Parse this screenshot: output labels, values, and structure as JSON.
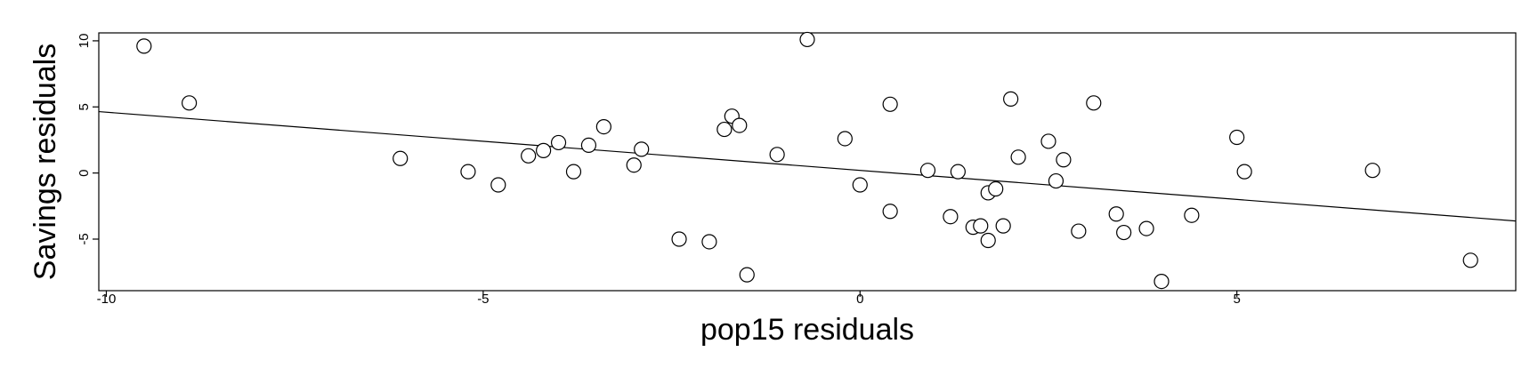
{
  "chart_data": {
    "type": "scatter",
    "xlabel": "pop15 residuals",
    "ylabel": "Savings residuals",
    "xlim": [
      -10.1,
      8.7
    ],
    "ylim": [
      -8.9,
      10.6
    ],
    "xticks": [
      -10,
      -5,
      0,
      5
    ],
    "yticks": [
      -5,
      0,
      5,
      10
    ],
    "xtick_labels": [
      "-10",
      "-5",
      "0",
      "5"
    ],
    "ytick_labels": [
      "-5",
      "0",
      "5",
      "10"
    ],
    "grid": false,
    "fit_line": {
      "intercept": 0.2,
      "slope": -0.44
    },
    "points": [
      {
        "x": -9.5,
        "y": 9.6
      },
      {
        "x": -8.9,
        "y": 5.3
      },
      {
        "x": -6.1,
        "y": 1.1
      },
      {
        "x": -5.2,
        "y": 0.1
      },
      {
        "x": -4.8,
        "y": -0.9
      },
      {
        "x": -4.4,
        "y": 1.3
      },
      {
        "x": -4.2,
        "y": 1.7
      },
      {
        "x": -4.0,
        "y": 2.3
      },
      {
        "x": -3.8,
        "y": 0.1
      },
      {
        "x": -3.6,
        "y": 2.1
      },
      {
        "x": -3.4,
        "y": 3.5
      },
      {
        "x": -3.0,
        "y": 0.6
      },
      {
        "x": -2.9,
        "y": 1.8
      },
      {
        "x": -2.4,
        "y": -5.0
      },
      {
        "x": -2.0,
        "y": -5.2
      },
      {
        "x": -1.8,
        "y": 3.3
      },
      {
        "x": -1.7,
        "y": 4.3
      },
      {
        "x": -1.6,
        "y": 3.6
      },
      {
        "x": -1.5,
        "y": -7.7
      },
      {
        "x": -1.1,
        "y": 1.4
      },
      {
        "x": -0.7,
        "y": 10.1
      },
      {
        "x": -0.2,
        "y": 2.6
      },
      {
        "x": 0.0,
        "y": -0.9
      },
      {
        "x": 0.4,
        "y": 5.2
      },
      {
        "x": 0.4,
        "y": -2.9
      },
      {
        "x": 0.9,
        "y": 0.2
      },
      {
        "x": 1.2,
        "y": -3.3
      },
      {
        "x": 1.3,
        "y": 0.1
      },
      {
        "x": 1.5,
        "y": -4.1
      },
      {
        "x": 1.6,
        "y": -4.0
      },
      {
        "x": 1.7,
        "y": -5.1
      },
      {
        "x": 1.7,
        "y": -1.5
      },
      {
        "x": 1.8,
        "y": -1.2
      },
      {
        "x": 1.9,
        "y": -4.0
      },
      {
        "x": 2.0,
        "y": 5.6
      },
      {
        "x": 2.1,
        "y": 1.2
      },
      {
        "x": 2.5,
        "y": 2.4
      },
      {
        "x": 2.6,
        "y": -0.6
      },
      {
        "x": 2.7,
        "y": 1.0
      },
      {
        "x": 2.9,
        "y": -4.4
      },
      {
        "x": 3.1,
        "y": 5.3
      },
      {
        "x": 3.4,
        "y": -3.1
      },
      {
        "x": 3.5,
        "y": -4.5
      },
      {
        "x": 3.8,
        "y": -4.2
      },
      {
        "x": 4.0,
        "y": -8.2
      },
      {
        "x": 4.4,
        "y": -3.2
      },
      {
        "x": 5.0,
        "y": 2.7
      },
      {
        "x": 5.1,
        "y": 0.1
      },
      {
        "x": 6.8,
        "y": 0.2
      },
      {
        "x": 8.1,
        "y": -6.6
      }
    ]
  }
}
